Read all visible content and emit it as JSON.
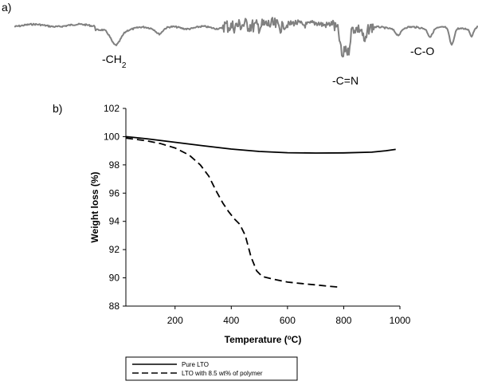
{
  "panel_a": {
    "label": "a)",
    "annotations": [
      {
        "id": "ch2",
        "text": "-CH",
        "sub": "2"
      },
      {
        "id": "cn",
        "text": "-C=N",
        "sub": ""
      },
      {
        "id": "co",
        "text": "-C-O",
        "sub": ""
      }
    ],
    "line_color": "#808080"
  },
  "panel_b": {
    "label": "b)"
  },
  "chart_data": {
    "type": "line",
    "title": "",
    "xlabel": "Temperature (",
    "xlabel_sup": "o",
    "xlabel_end": "C)",
    "ylabel": "Weight loss (%)",
    "xlim": [
      25,
      1000
    ],
    "ylim": [
      88,
      102
    ],
    "x_ticks": [
      "200",
      "400",
      "600",
      "800",
      "1000"
    ],
    "x_tick_values": [
      200,
      400,
      600,
      800,
      1000
    ],
    "y_ticks": [
      "88",
      "90",
      "92",
      "94",
      "96",
      "98",
      "100",
      "102"
    ],
    "y_tick_values": [
      88,
      90,
      92,
      94,
      96,
      98,
      100,
      102
    ],
    "grid": false,
    "legend_position": "bottom",
    "series": [
      {
        "name": "Pure LTO",
        "style": "solid",
        "x": [
          25,
          100,
          200,
          300,
          400,
          500,
          600,
          700,
          800,
          900,
          950,
          985
        ],
        "y": [
          100.0,
          99.85,
          99.6,
          99.35,
          99.12,
          98.95,
          98.86,
          98.84,
          98.85,
          98.9,
          99.0,
          99.1
        ]
      },
      {
        "name": "LTO with 8.5 wt% of polymer",
        "style": "dashed",
        "x": [
          25,
          100,
          150,
          200,
          250,
          290,
          320,
          345,
          370,
          390,
          410,
          430,
          450,
          470,
          490,
          510,
          550,
          600,
          650,
          700,
          750,
          780
        ],
        "y": [
          99.9,
          99.7,
          99.5,
          99.2,
          98.7,
          98.0,
          97.2,
          96.2,
          95.3,
          94.7,
          94.2,
          93.8,
          93.0,
          91.5,
          90.5,
          90.1,
          89.9,
          89.7,
          89.6,
          89.5,
          89.4,
          89.35
        ]
      }
    ]
  }
}
